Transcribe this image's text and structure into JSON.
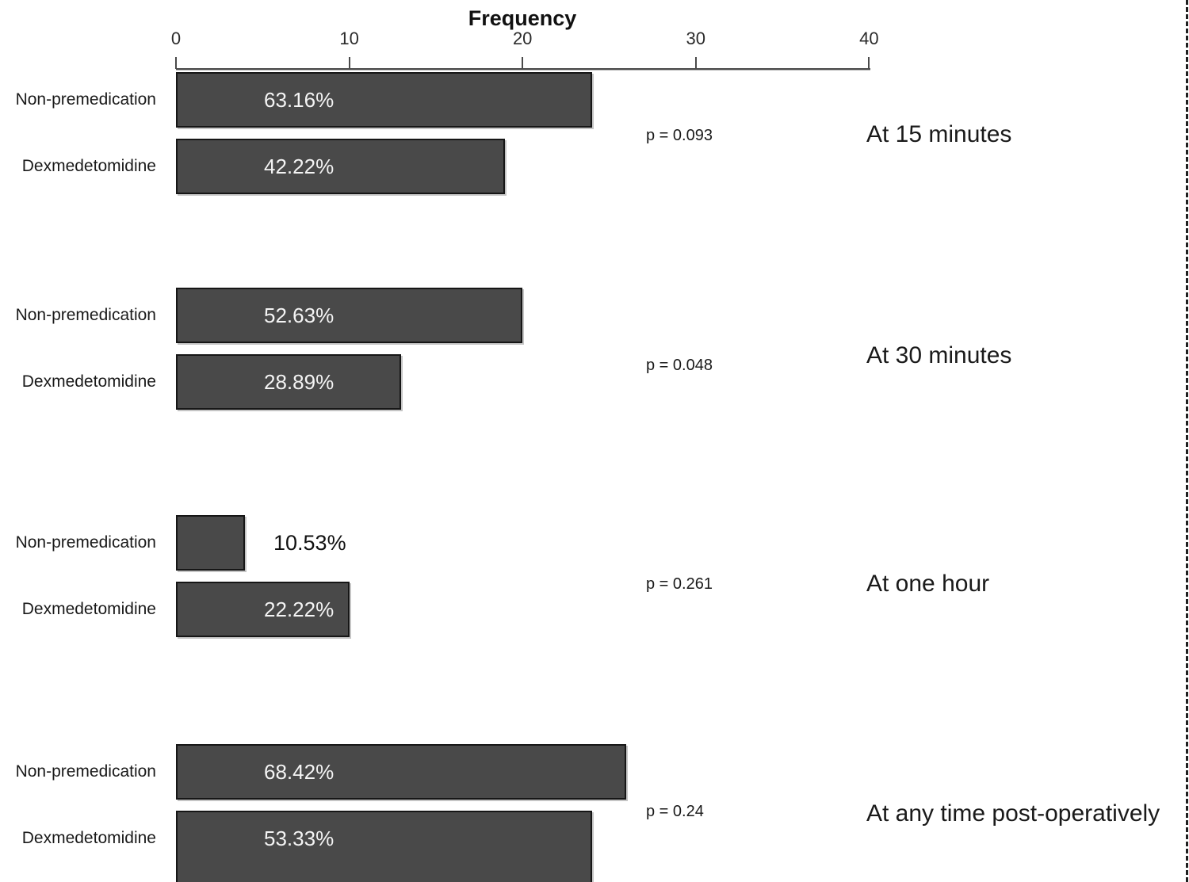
{
  "axis": {
    "title": "Frequency",
    "tick_labels": [
      "0",
      "10",
      "20",
      "30",
      "40"
    ],
    "tick_values": [
      0,
      10,
      20,
      30,
      40
    ],
    "xlim": [
      0,
      40
    ]
  },
  "chart_data": {
    "type": "bar",
    "orientation": "horizontal",
    "title": "Frequency",
    "xlabel": "Frequency",
    "xlim": [
      0,
      40
    ],
    "grid": false,
    "bar_color": "#494949",
    "bar_border_color": "#161616",
    "value_text_color_inside": "#f4f4f4",
    "categories": [
      "Non-premedication",
      "Dexmedetomidine"
    ],
    "groups": [
      {
        "label": "At 15 minutes",
        "p_value": "p = 0.093",
        "bars": [
          {
            "category": "Non-premedication",
            "frequency": 24,
            "percent": "63.16%"
          },
          {
            "category": "Dexmedetomidine",
            "frequency": 19,
            "percent": "42.22%"
          }
        ]
      },
      {
        "label": "At 30 minutes",
        "p_value": "p = 0.048",
        "bars": [
          {
            "category": "Non-premedication",
            "frequency": 20,
            "percent": "52.63%"
          },
          {
            "category": "Dexmedetomidine",
            "frequency": 13,
            "percent": "28.89%"
          }
        ]
      },
      {
        "label": "At one hour",
        "p_value": "p = 0.261",
        "bars": [
          {
            "category": "Non-premedication",
            "frequency": 4,
            "percent": "10.53%"
          },
          {
            "category": "Dexmedetomidine",
            "frequency": 10,
            "percent": "22.22%"
          }
        ]
      },
      {
        "label": "At any time post-operatively",
        "p_value": "p = 0.24",
        "bars": [
          {
            "category": "Non-premedication",
            "frequency": 26,
            "percent": "68.42%"
          },
          {
            "category": "Dexmedetomidine",
            "frequency": 24,
            "percent": "53.33%"
          }
        ]
      }
    ]
  }
}
